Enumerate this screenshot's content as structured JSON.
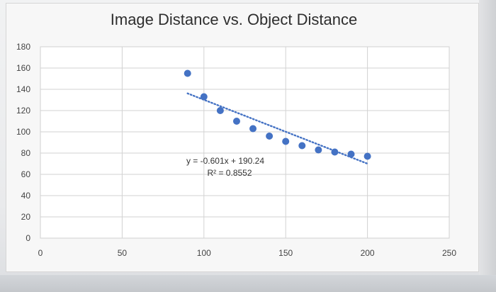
{
  "chart_data": {
    "type": "scatter",
    "title": "Image Distance vs. Object Distance",
    "xlabel": "",
    "ylabel": "",
    "xlim": [
      0,
      250
    ],
    "ylim": [
      0,
      180
    ],
    "x_ticks": [
      0,
      50,
      100,
      150,
      200,
      250
    ],
    "y_ticks": [
      0,
      20,
      40,
      60,
      80,
      100,
      120,
      140,
      160,
      180
    ],
    "grid": true,
    "legend": "none",
    "series": [
      {
        "color": "#4472c4",
        "points": [
          {
            "x": 90,
            "y": 155
          },
          {
            "x": 100,
            "y": 133
          },
          {
            "x": 110,
            "y": 120
          },
          {
            "x": 120,
            "y": 110
          },
          {
            "x": 130,
            "y": 103
          },
          {
            "x": 140,
            "y": 96
          },
          {
            "x": 150,
            "y": 91
          },
          {
            "x": 160,
            "y": 87
          },
          {
            "x": 170,
            "y": 83
          },
          {
            "x": 180,
            "y": 81
          },
          {
            "x": 190,
            "y": 79
          },
          {
            "x": 200,
            "y": 77
          }
        ]
      }
    ],
    "trendline": {
      "type": "linear",
      "slope": -0.601,
      "intercept": 190.24,
      "x_range": [
        90,
        200
      ],
      "style": "dotted",
      "color": "#4472c4"
    },
    "annotations": {
      "equation": "y = -0.601x + 190.24",
      "r_squared": "R² = 0.8552"
    }
  }
}
